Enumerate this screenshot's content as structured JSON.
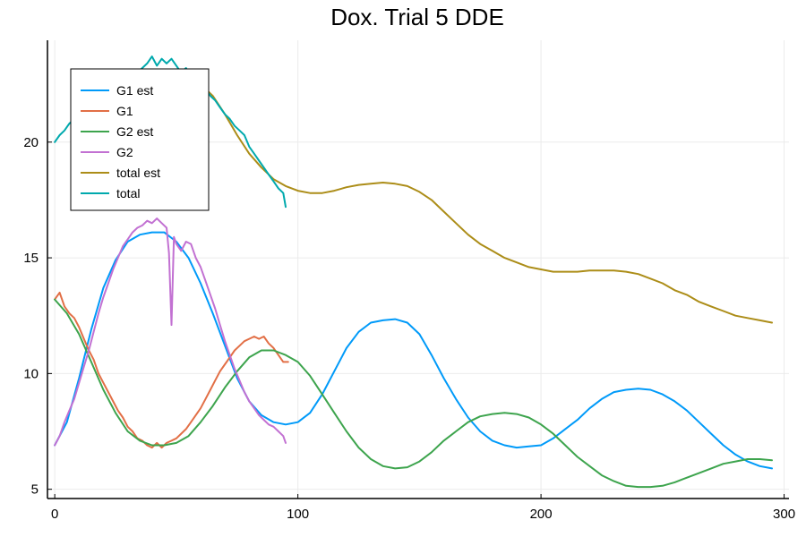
{
  "chart_data": {
    "type": "line",
    "title": "Dox. Trial 5 DDE",
    "xlabel": "",
    "ylabel": "",
    "xlim": [
      -3,
      302
    ],
    "ylim": [
      4.6,
      24.4
    ],
    "x_ticks": [
      0,
      100,
      200,
      300
    ],
    "y_ticks": [
      5,
      10,
      15,
      20
    ],
    "grid": true,
    "legend_position": "top-left",
    "series": [
      {
        "name": "G1 est",
        "color": "#009af9",
        "points": [
          [
            0,
            6.9
          ],
          [
            5,
            7.9
          ],
          [
            10,
            9.8
          ],
          [
            15,
            11.9
          ],
          [
            20,
            13.7
          ],
          [
            25,
            14.9
          ],
          [
            30,
            15.7
          ],
          [
            35,
            16.0
          ],
          [
            40,
            16.1
          ],
          [
            45,
            16.1
          ],
          [
            50,
            15.7
          ],
          [
            55,
            15.0
          ],
          [
            60,
            13.9
          ],
          [
            65,
            12.6
          ],
          [
            70,
            11.2
          ],
          [
            75,
            9.8
          ],
          [
            80,
            8.8
          ],
          [
            85,
            8.2
          ],
          [
            90,
            7.9
          ],
          [
            95,
            7.8
          ],
          [
            100,
            7.9
          ],
          [
            105,
            8.3
          ],
          [
            110,
            9.1
          ],
          [
            115,
            10.1
          ],
          [
            120,
            11.1
          ],
          [
            125,
            11.8
          ],
          [
            130,
            12.2
          ],
          [
            135,
            12.3
          ],
          [
            140,
            12.35
          ],
          [
            145,
            12.2
          ],
          [
            150,
            11.7
          ],
          [
            155,
            10.8
          ],
          [
            160,
            9.8
          ],
          [
            165,
            8.9
          ],
          [
            170,
            8.1
          ],
          [
            175,
            7.5
          ],
          [
            180,
            7.1
          ],
          [
            185,
            6.9
          ],
          [
            190,
            6.8
          ],
          [
            195,
            6.85
          ],
          [
            200,
            6.9
          ],
          [
            205,
            7.2
          ],
          [
            210,
            7.6
          ],
          [
            215,
            8.0
          ],
          [
            220,
            8.5
          ],
          [
            225,
            8.9
          ],
          [
            230,
            9.2
          ],
          [
            235,
            9.3
          ],
          [
            240,
            9.35
          ],
          [
            245,
            9.3
          ],
          [
            250,
            9.1
          ],
          [
            255,
            8.8
          ],
          [
            260,
            8.4
          ],
          [
            265,
            7.9
          ],
          [
            270,
            7.4
          ],
          [
            275,
            6.9
          ],
          [
            280,
            6.5
          ],
          [
            285,
            6.2
          ],
          [
            290,
            6.0
          ],
          [
            295,
            5.9
          ]
        ]
      },
      {
        "name": "G1",
        "color": "#e26f46",
        "points": [
          [
            0,
            13.2
          ],
          [
            2,
            13.5
          ],
          [
            4,
            12.9
          ],
          [
            6,
            12.6
          ],
          [
            8,
            12.4
          ],
          [
            10,
            12.0
          ],
          [
            12,
            11.5
          ],
          [
            14,
            11.0
          ],
          [
            16,
            10.6
          ],
          [
            18,
            10.0
          ],
          [
            20,
            9.6
          ],
          [
            22,
            9.2
          ],
          [
            24,
            8.8
          ],
          [
            26,
            8.4
          ],
          [
            28,
            8.1
          ],
          [
            30,
            7.7
          ],
          [
            32,
            7.5
          ],
          [
            34,
            7.2
          ],
          [
            36,
            7.1
          ],
          [
            38,
            6.9
          ],
          [
            40,
            6.8
          ],
          [
            42,
            7.0
          ],
          [
            44,
            6.8
          ],
          [
            46,
            7.0
          ],
          [
            48,
            7.1
          ],
          [
            50,
            7.2
          ],
          [
            52,
            7.4
          ],
          [
            54,
            7.6
          ],
          [
            56,
            7.9
          ],
          [
            58,
            8.2
          ],
          [
            60,
            8.5
          ],
          [
            62,
            8.9
          ],
          [
            64,
            9.3
          ],
          [
            66,
            9.7
          ],
          [
            68,
            10.1
          ],
          [
            70,
            10.4
          ],
          [
            72,
            10.7
          ],
          [
            74,
            11.0
          ],
          [
            76,
            11.2
          ],
          [
            78,
            11.4
          ],
          [
            80,
            11.5
          ],
          [
            82,
            11.6
          ],
          [
            84,
            11.5
          ],
          [
            86,
            11.6
          ],
          [
            88,
            11.3
          ],
          [
            90,
            11.1
          ],
          [
            92,
            10.8
          ],
          [
            94,
            10.5
          ],
          [
            96,
            10.5
          ]
        ]
      },
      {
        "name": "G2 est",
        "color": "#3da44d",
        "points": [
          [
            0,
            13.2
          ],
          [
            5,
            12.6
          ],
          [
            10,
            11.7
          ],
          [
            15,
            10.5
          ],
          [
            20,
            9.3
          ],
          [
            25,
            8.3
          ],
          [
            30,
            7.5
          ],
          [
            35,
            7.1
          ],
          [
            40,
            6.9
          ],
          [
            45,
            6.9
          ],
          [
            50,
            7.0
          ],
          [
            55,
            7.3
          ],
          [
            60,
            7.9
          ],
          [
            65,
            8.6
          ],
          [
            70,
            9.4
          ],
          [
            75,
            10.1
          ],
          [
            80,
            10.7
          ],
          [
            85,
            11.0
          ],
          [
            90,
            11.0
          ],
          [
            95,
            10.8
          ],
          [
            100,
            10.5
          ],
          [
            105,
            9.9
          ],
          [
            110,
            9.1
          ],
          [
            115,
            8.3
          ],
          [
            120,
            7.5
          ],
          [
            125,
            6.8
          ],
          [
            130,
            6.3
          ],
          [
            135,
            6.0
          ],
          [
            140,
            5.9
          ],
          [
            145,
            5.95
          ],
          [
            150,
            6.2
          ],
          [
            155,
            6.6
          ],
          [
            160,
            7.1
          ],
          [
            165,
            7.5
          ],
          [
            170,
            7.9
          ],
          [
            175,
            8.15
          ],
          [
            180,
            8.25
          ],
          [
            185,
            8.3
          ],
          [
            190,
            8.25
          ],
          [
            195,
            8.1
          ],
          [
            200,
            7.8
          ],
          [
            205,
            7.4
          ],
          [
            210,
            6.9
          ],
          [
            215,
            6.4
          ],
          [
            220,
            6.0
          ],
          [
            225,
            5.6
          ],
          [
            230,
            5.35
          ],
          [
            235,
            5.15
          ],
          [
            240,
            5.1
          ],
          [
            245,
            5.1
          ],
          [
            250,
            5.15
          ],
          [
            255,
            5.3
          ],
          [
            260,
            5.5
          ],
          [
            265,
            5.7
          ],
          [
            270,
            5.9
          ],
          [
            275,
            6.1
          ],
          [
            280,
            6.2
          ],
          [
            285,
            6.3
          ],
          [
            290,
            6.3
          ],
          [
            295,
            6.25
          ]
        ]
      },
      {
        "name": "G2",
        "color": "#c271d2",
        "points": [
          [
            0,
            6.9
          ],
          [
            2,
            7.3
          ],
          [
            4,
            7.9
          ],
          [
            6,
            8.4
          ],
          [
            8,
            8.9
          ],
          [
            10,
            9.6
          ],
          [
            12,
            10.3
          ],
          [
            14,
            11.0
          ],
          [
            16,
            11.8
          ],
          [
            18,
            12.6
          ],
          [
            20,
            13.3
          ],
          [
            22,
            13.9
          ],
          [
            24,
            14.5
          ],
          [
            26,
            15.0
          ],
          [
            28,
            15.5
          ],
          [
            30,
            15.8
          ],
          [
            32,
            16.1
          ],
          [
            34,
            16.3
          ],
          [
            36,
            16.4
          ],
          [
            38,
            16.6
          ],
          [
            40,
            16.5
          ],
          [
            42,
            16.7
          ],
          [
            44,
            16.5
          ],
          [
            46,
            16.3
          ],
          [
            47,
            15.2
          ],
          [
            48,
            12.1
          ],
          [
            49,
            15.9
          ],
          [
            50,
            15.6
          ],
          [
            52,
            15.3
          ],
          [
            54,
            15.7
          ],
          [
            56,
            15.6
          ],
          [
            58,
            15.0
          ],
          [
            60,
            14.6
          ],
          [
            62,
            14.0
          ],
          [
            64,
            13.4
          ],
          [
            66,
            12.8
          ],
          [
            68,
            12.1
          ],
          [
            70,
            11.4
          ],
          [
            72,
            10.8
          ],
          [
            74,
            10.2
          ],
          [
            76,
            9.7
          ],
          [
            78,
            9.2
          ],
          [
            80,
            8.8
          ],
          [
            82,
            8.5
          ],
          [
            84,
            8.2
          ],
          [
            86,
            8.0
          ],
          [
            88,
            7.8
          ],
          [
            90,
            7.7
          ],
          [
            92,
            7.5
          ],
          [
            94,
            7.3
          ],
          [
            95,
            7.0
          ]
        ]
      },
      {
        "name": "total est",
        "color": "#ac8d18",
        "points": [
          [
            60,
            22.5
          ],
          [
            65,
            22.0
          ],
          [
            70,
            21.2
          ],
          [
            75,
            20.3
          ],
          [
            80,
            19.5
          ],
          [
            85,
            18.9
          ],
          [
            90,
            18.4
          ],
          [
            95,
            18.1
          ],
          [
            100,
            17.9
          ],
          [
            105,
            17.8
          ],
          [
            110,
            17.8
          ],
          [
            115,
            17.9
          ],
          [
            120,
            18.05
          ],
          [
            125,
            18.15
          ],
          [
            130,
            18.2
          ],
          [
            135,
            18.25
          ],
          [
            140,
            18.2
          ],
          [
            145,
            18.1
          ],
          [
            150,
            17.85
          ],
          [
            155,
            17.5
          ],
          [
            160,
            17.0
          ],
          [
            165,
            16.5
          ],
          [
            170,
            16.0
          ],
          [
            175,
            15.6
          ],
          [
            180,
            15.3
          ],
          [
            185,
            15.0
          ],
          [
            190,
            14.8
          ],
          [
            195,
            14.6
          ],
          [
            200,
            14.5
          ],
          [
            205,
            14.4
          ],
          [
            210,
            14.4
          ],
          [
            215,
            14.4
          ],
          [
            220,
            14.45
          ],
          [
            225,
            14.45
          ],
          [
            230,
            14.45
          ],
          [
            235,
            14.4
          ],
          [
            240,
            14.3
          ],
          [
            245,
            14.1
          ],
          [
            250,
            13.9
          ],
          [
            255,
            13.6
          ],
          [
            260,
            13.4
          ],
          [
            265,
            13.1
          ],
          [
            270,
            12.9
          ],
          [
            275,
            12.7
          ],
          [
            280,
            12.5
          ],
          [
            285,
            12.4
          ],
          [
            290,
            12.3
          ],
          [
            295,
            12.2
          ]
        ]
      },
      {
        "name": "total",
        "color": "#00a9ad",
        "points": [
          [
            0,
            20.0
          ],
          [
            2,
            20.3
          ],
          [
            4,
            20.5
          ],
          [
            6,
            20.8
          ],
          [
            8,
            21.0
          ],
          [
            10,
            21.3
          ],
          [
            12,
            21.6
          ],
          [
            14,
            21.8
          ],
          [
            16,
            22.0
          ],
          [
            18,
            22.2
          ],
          [
            20,
            22.4
          ],
          [
            22,
            22.6
          ],
          [
            24,
            22.7
          ],
          [
            26,
            22.9
          ],
          [
            28,
            23.0
          ],
          [
            30,
            22.9
          ],
          [
            32,
            23.1
          ],
          [
            34,
            23.0
          ],
          [
            36,
            23.2
          ],
          [
            38,
            23.4
          ],
          [
            40,
            23.7
          ],
          [
            42,
            23.3
          ],
          [
            44,
            23.6
          ],
          [
            46,
            23.4
          ],
          [
            48,
            23.6
          ],
          [
            50,
            23.3
          ],
          [
            52,
            23.0
          ],
          [
            54,
            23.2
          ],
          [
            56,
            22.8
          ],
          [
            58,
            22.5
          ],
          [
            60,
            22.7
          ],
          [
            62,
            22.3
          ],
          [
            64,
            22.0
          ],
          [
            66,
            21.8
          ],
          [
            68,
            21.5
          ],
          [
            70,
            21.2
          ],
          [
            72,
            21.0
          ],
          [
            74,
            20.7
          ],
          [
            76,
            20.5
          ],
          [
            78,
            20.3
          ],
          [
            80,
            19.8
          ],
          [
            82,
            19.5
          ],
          [
            84,
            19.2
          ],
          [
            86,
            18.9
          ],
          [
            88,
            18.6
          ],
          [
            90,
            18.3
          ],
          [
            92,
            18.0
          ],
          [
            94,
            17.8
          ],
          [
            95,
            17.2
          ]
        ]
      }
    ]
  }
}
